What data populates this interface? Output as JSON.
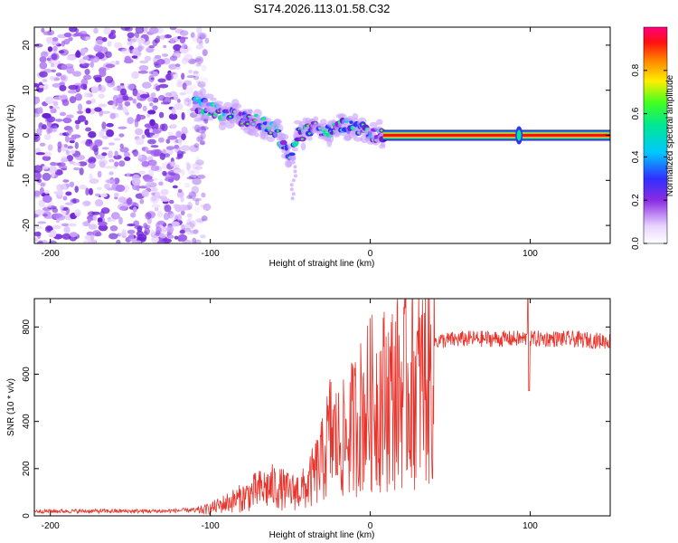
{
  "title": "S174.2026.113.01.58.C32",
  "chart_data": [
    {
      "type": "heatmap",
      "xlabel": "Height of straight line (km)",
      "ylabel": "Frequency (Hz)",
      "xlim": [
        -210,
        150
      ],
      "ylim": [
        -24,
        24
      ],
      "xticks": [
        -200,
        -100,
        0,
        100
      ],
      "yticks": [
        -20,
        -10,
        0,
        10,
        20
      ],
      "colorbar": {
        "label": "Normalized spectral amplitude",
        "range": [
          0,
          1
        ],
        "ticks": [
          0.0,
          0.2,
          0.4,
          0.6,
          0.8
        ]
      },
      "signal": {
        "noise_region_x": [
          -210,
          -110
        ],
        "track": [
          [
            -110,
            7
          ],
          [
            -100,
            6
          ],
          [
            -90,
            5
          ],
          [
            -80,
            4
          ],
          [
            -70,
            3
          ],
          [
            -60,
            1
          ],
          [
            -50,
            -4
          ],
          [
            -45,
            0
          ],
          [
            -35,
            2
          ],
          [
            -25,
            1
          ],
          [
            -15,
            2
          ],
          [
            -5,
            1
          ],
          [
            5,
            0
          ],
          [
            150,
            0
          ]
        ],
        "steady_line_start_x": 8,
        "steady_line_freq": 0,
        "spike_x": 93
      }
    },
    {
      "type": "line",
      "xlabel": "Height of straight line (km)",
      "ylabel": "SNR (10 * v/v)",
      "xlim": [
        -210,
        150
      ],
      "ylim": [
        0,
        920
      ],
      "xticks": [
        -200,
        -100,
        0,
        100
      ],
      "yticks": [
        0,
        200,
        400,
        600,
        800
      ],
      "color": "#e8322a",
      "series": [
        {
          "name": "SNR",
          "envelope": [
            [
              -210,
              20
            ],
            [
              -130,
              20
            ],
            [
              -110,
              25
            ],
            [
              -100,
              40
            ],
            [
              -90,
              70
            ],
            [
              -80,
              100
            ],
            [
              -70,
              140
            ],
            [
              -60,
              160
            ],
            [
              -50,
              130
            ],
            [
              -40,
              150
            ],
            [
              -30,
              300
            ],
            [
              -25,
              450
            ],
            [
              -20,
              400
            ],
            [
              -15,
              420
            ],
            [
              -10,
              500
            ],
            [
              -5,
              560
            ],
            [
              0,
              610
            ],
            [
              10,
              650
            ],
            [
              20,
              690
            ],
            [
              30,
              720
            ],
            [
              40,
              740
            ],
            [
              60,
              750
            ],
            [
              80,
              750
            ],
            [
              100,
              750
            ],
            [
              120,
              750
            ],
            [
              150,
              740
            ]
          ],
          "spike": {
            "x": 99,
            "min": 530,
            "max": 920
          }
        }
      ]
    }
  ]
}
